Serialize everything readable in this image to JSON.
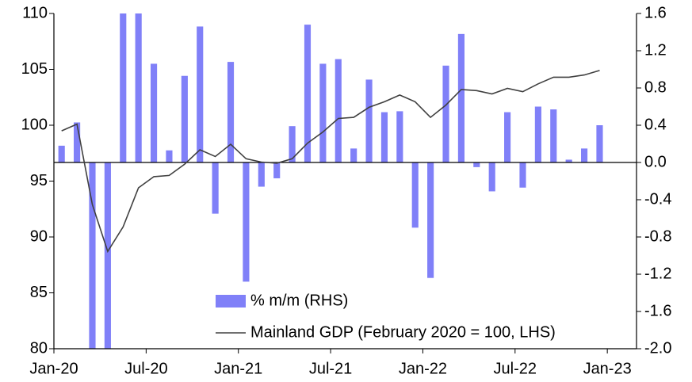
{
  "chart_data": {
    "type": "combo",
    "x": [
      0,
      1,
      2,
      3,
      4,
      5,
      6,
      7,
      8,
      9,
      10,
      11,
      12,
      13,
      14,
      15,
      16,
      17,
      18,
      19,
      20,
      21,
      22,
      23,
      24,
      25,
      26,
      27,
      28,
      29,
      30,
      31,
      32,
      33,
      34,
      35
    ],
    "xlim": [
      -0.5,
      37.4
    ],
    "xticks": [
      {
        "value": 0,
        "label": "Jan-20"
      },
      {
        "value": 6,
        "label": "Jul-20"
      },
      {
        "value": 12,
        "label": "Jan-21"
      },
      {
        "value": 18,
        "label": "Jul-21"
      },
      {
        "value": 24,
        "label": "Jan-22"
      },
      {
        "value": 30,
        "label": "Jul-22"
      },
      {
        "value": 36,
        "label": "Jan-23"
      }
    ],
    "ylim": [
      80,
      110
    ],
    "yticks": [
      80,
      85,
      90,
      95,
      100,
      105,
      110
    ],
    "y2lim": [
      -2.0,
      1.6
    ],
    "y2ticks": [
      {
        "value": -2.0,
        "label": "-2.0"
      },
      -1.6,
      -1.2,
      -0.8,
      -0.4,
      {
        "value": 0,
        "label": "0.0"
      },
      0.4,
      0.8,
      1.2,
      1.6
    ],
    "legend": "bottom-center",
    "series": [
      {
        "name": "% m/m (RHS)",
        "type": "bar",
        "axis": "y2",
        "color": "#8080f8",
        "values": [
          0.18,
          0.43,
          -2.0,
          -2.0,
          1.6,
          1.6,
          1.06,
          0.13,
          0.93,
          1.46,
          -0.55,
          1.08,
          -1.28,
          -0.26,
          -0.17,
          0.39,
          1.48,
          1.06,
          1.11,
          0.15,
          0.89,
          0.54,
          0.55,
          -0.7,
          -1.24,
          1.04,
          1.38,
          -0.05,
          -0.31,
          0.54,
          -0.27,
          0.6,
          0.57,
          0.03,
          0.15,
          0.4
        ]
      },
      {
        "name": "Mainland GDP (February 2020 = 100, LHS)",
        "type": "line",
        "axis": "y",
        "color": "#404040",
        "values": [
          99.5,
          100.1,
          92.9,
          88.7,
          90.9,
          94.4,
          95.4,
          95.5,
          96.5,
          97.8,
          97.2,
          98.3,
          97.0,
          96.7,
          96.6,
          97.0,
          98.4,
          99.4,
          100.6,
          100.7,
          101.6,
          102.1,
          102.7,
          102.1,
          100.7,
          101.8,
          103.2,
          103.1,
          102.8,
          103.3,
          103.0,
          103.7,
          104.3,
          104.3,
          104.5,
          104.9
        ]
      }
    ]
  }
}
